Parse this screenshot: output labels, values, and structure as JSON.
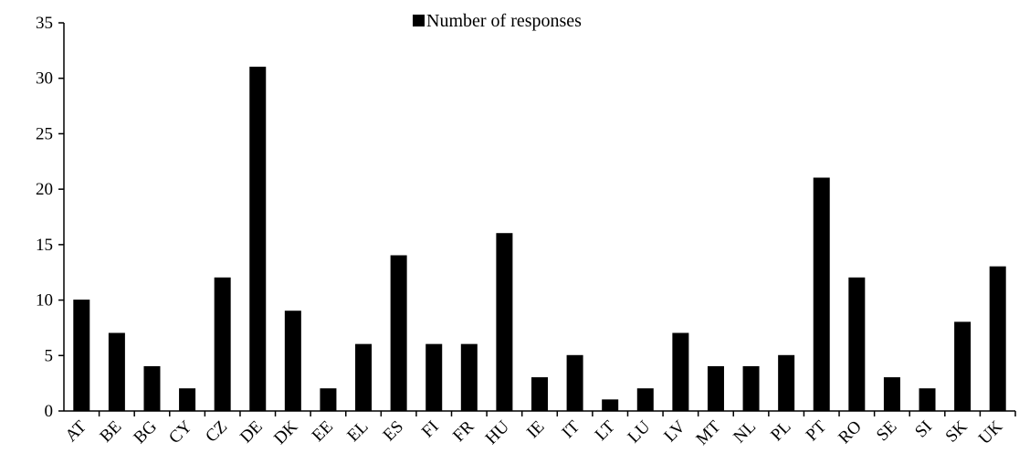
{
  "chart_data": {
    "type": "bar",
    "categories": [
      "AT",
      "BE",
      "BG",
      "CY",
      "CZ",
      "DE",
      "DK",
      "EE",
      "EL",
      "ES",
      "FI",
      "FR",
      "HU",
      "IE",
      "IT",
      "LT",
      "LU",
      "LV",
      "MT",
      "NL",
      "PL",
      "PT",
      "RO",
      "SE",
      "SI",
      "SK",
      "UK"
    ],
    "series": [
      {
        "name": "Number of responses",
        "values": [
          10,
          7,
          4,
          2,
          12,
          31,
          9,
          2,
          6,
          14,
          6,
          6,
          16,
          3,
          5,
          1,
          2,
          7,
          4,
          4,
          5,
          21,
          12,
          3,
          2,
          8,
          13
        ],
        "color": "#000000"
      }
    ],
    "y_ticks": [
      "0",
      "5",
      "10",
      "15",
      "20",
      "25",
      "30",
      "35"
    ],
    "ylim": [
      0,
      35
    ],
    "legend_position": "top-center",
    "grid": false
  }
}
